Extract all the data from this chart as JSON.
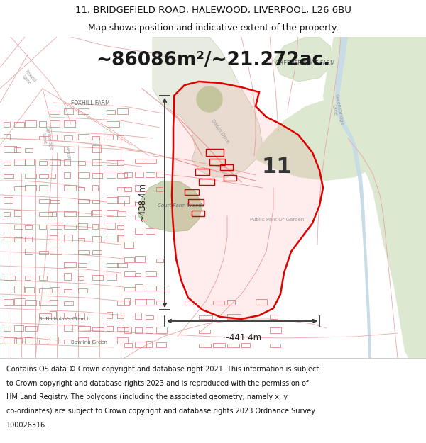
{
  "title_line1": "11, BRIDGEFIELD ROAD, HALEWOOD, LIVERPOOL, L26 6BU",
  "title_line2": "Map shows position and indicative extent of the property.",
  "area_text": "~86086m²/~21.272ac.",
  "label_number": "11",
  "dim_bottom": "~441.4m",
  "dim_left": "~438.4m",
  "footer_lines": [
    "Contains OS data © Crown copyright and database right 2021. This information is subject",
    "to Crown copyright and database rights 2023 and is reproduced with the permission of",
    "HM Land Registry. The polygons (including the associated geometry, namely x, y",
    "co-ordinates) are subject to Crown copyright and database rights 2023 Ordnance Survey",
    "100026316."
  ],
  "map_bg": "#ffffff",
  "title_bg": "#ffffff",
  "footer_bg": "#ffffff",
  "road_color": "#e8a8a8",
  "green_color": "#d8e8d0",
  "green_mid": "#c8ddc0",
  "property_fill": "#ff000015",
  "property_edge": "#dd0000",
  "arrow_color": "#333333",
  "title_fontsize": 9.5,
  "subtitle_fontsize": 8.8,
  "area_fontsize": 19,
  "label_fontsize": 22,
  "footer_fontsize": 7.0,
  "dim_fontsize": 8.5,
  "map_label_fontsize": 5.5
}
